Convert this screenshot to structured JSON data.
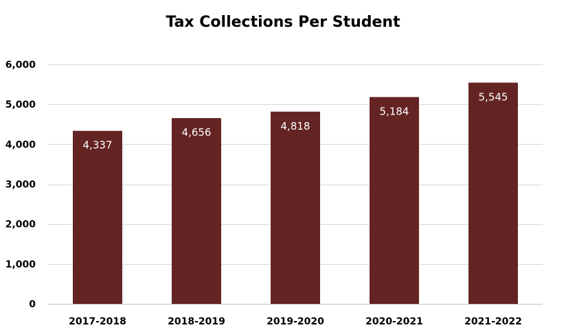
{
  "chart_data": {
    "type": "bar",
    "title": "Tax Collections Per Student",
    "categories": [
      "2017-2018",
      "2018-2019",
      "2019-2020",
      "2020-2021",
      "2021-2022"
    ],
    "values": [
      4337,
      4656,
      4818,
      5184,
      5545
    ],
    "data_labels": [
      "4,337",
      "4,656",
      "4,818",
      "5,184",
      "5,545"
    ],
    "y_ticks": [
      0,
      1000,
      2000,
      3000,
      4000,
      5000,
      6000
    ],
    "y_tick_labels": [
      "0",
      "1,000",
      "2,000",
      "3,000",
      "4,000",
      "5,000",
      "6,000"
    ],
    "ylim": [
      0,
      6000
    ],
    "xlabel": "",
    "ylabel": "",
    "grid": true,
    "legend": "none",
    "bar_color": "#632423",
    "grid_color": "#d9d9d9",
    "axis_color": "#bfbfbf"
  }
}
